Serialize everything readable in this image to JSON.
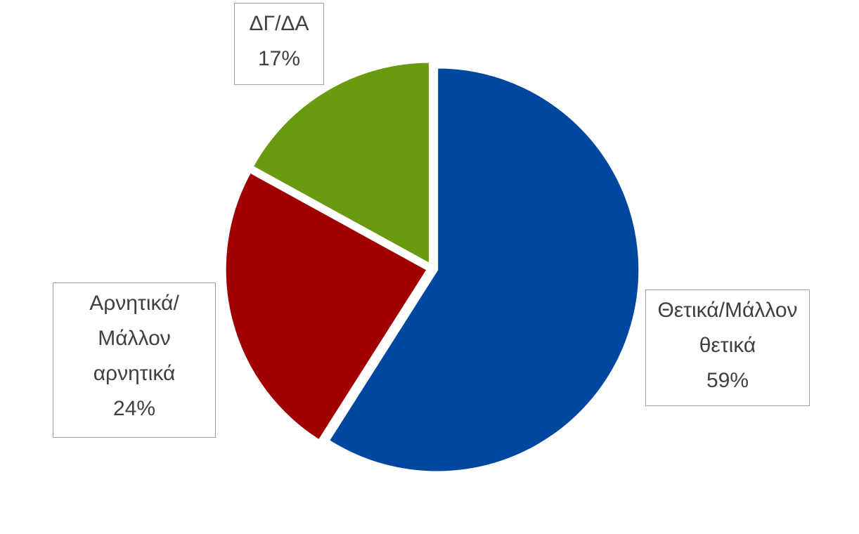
{
  "chart_data": {
    "type": "pie",
    "categories": [
      "Θετικά/Μάλλον θετικά",
      "Αρνητικά/Μάλλον αρνητικά",
      "ΔΓ/ΔΑ"
    ],
    "values": [
      59,
      24,
      17
    ],
    "value_labels": [
      "59%",
      "24%",
      "17%"
    ],
    "colors": [
      "#0047a0",
      "#a00000",
      "#6a9a10"
    ]
  }
}
